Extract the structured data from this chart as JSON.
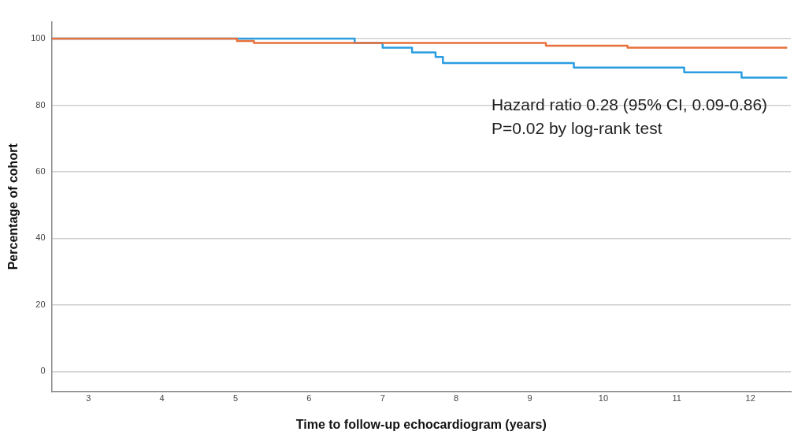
{
  "chart_data": {
    "type": "step",
    "xlabel": "Time to follow-up echocardiogram (years)",
    "ylabel": "Percentage of cohort",
    "annotations": [
      "Hazard ratio 0.28 (95% CI, 0.09-0.86)",
      "P=0.02 by log-rank test"
    ],
    "series": [
      {
        "color": "#e8703a",
        "x": [
          2.5,
          5.02,
          5.25,
          9.22,
          10.33,
          12.5
        ],
        "values": [
          100,
          99.3,
          98.7,
          97.9,
          97.3,
          97.3
        ]
      },
      {
        "color": "#2a9de0",
        "x": [
          2.5,
          6.62,
          7.0,
          7.4,
          7.72,
          7.82,
          9.6,
          11.1,
          11.88,
          12.5
        ],
        "values": [
          100,
          98.7,
          97.3,
          95.9,
          94.5,
          92.7,
          91.3,
          89.9,
          88.3,
          88.3
        ]
      }
    ],
    "xlim": [
      2.5,
      12.55
    ],
    "xticks": [
      3,
      4,
      5,
      6,
      7,
      8,
      9,
      10,
      11,
      12
    ],
    "ylim": [
      -6,
      105
    ],
    "yticks": [
      0,
      20,
      40,
      60,
      80,
      100
    ],
    "grid": "y",
    "legend": false,
    "marker": "none",
    "line_style": "solid"
  }
}
